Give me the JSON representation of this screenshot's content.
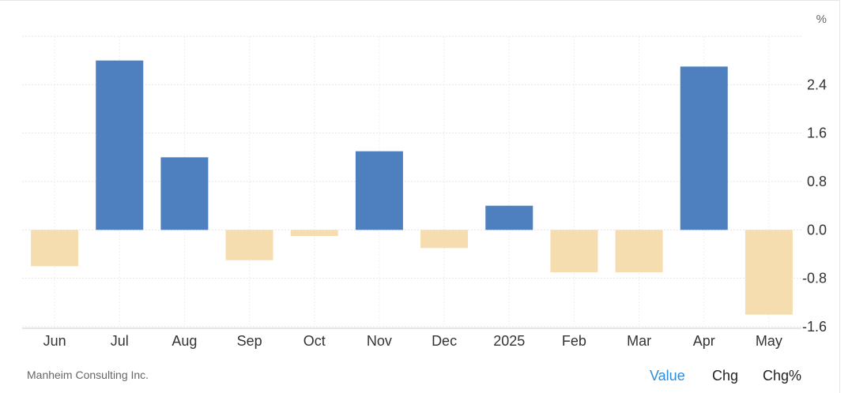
{
  "chart_data": {
    "type": "bar",
    "unit_label": "%",
    "categories": [
      "Jun",
      "Jul",
      "Aug",
      "Sep",
      "Oct",
      "Nov",
      "Dec",
      "2025",
      "Feb",
      "Mar",
      "Apr",
      "May"
    ],
    "values": [
      -0.6,
      2.8,
      1.2,
      -0.5,
      -0.1,
      1.3,
      -0.3,
      0.4,
      -0.7,
      -0.7,
      2.7,
      -1.4
    ],
    "y_ticks": [
      -1.6,
      -0.8,
      0.0,
      0.8,
      1.6,
      2.4
    ],
    "y_tick_labels": [
      "-1.6",
      "-0.8",
      "0.0",
      "0.8",
      "1.6",
      "2.4"
    ],
    "ylim": [
      -1.6,
      3.2
    ],
    "positive_color": "#4e7fbe",
    "negative_color": "#f5ddb0",
    "grid": true
  },
  "footer": {
    "source": "Manheim Consulting Inc.",
    "buttons": {
      "value": "Value",
      "chg": "Chg",
      "chg_pct": "Chg%"
    }
  }
}
